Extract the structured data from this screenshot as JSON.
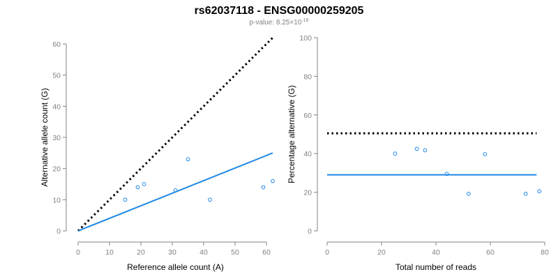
{
  "title": "rs62037118 - ENSG00000259205",
  "subtitle": {
    "prefix": "p-value: 8.25×10",
    "exponent": "-18"
  },
  "colors": {
    "points": "#1e88e5",
    "fit_line": "#1e88e5",
    "reference_line": "#000000",
    "ticks": "#808080"
  },
  "chart_data": [
    {
      "type": "scatter",
      "xlabel": "Reference allele count (A)",
      "ylabel": "Alternative allele count (G)",
      "xlim": [
        0,
        62
      ],
      "ylim": [
        0,
        60
      ],
      "xticks": [
        0,
        10,
        20,
        30,
        40,
        50,
        60
      ],
      "yticks": [
        0,
        10,
        20,
        30,
        40,
        50,
        60
      ],
      "points": [
        {
          "x": 15,
          "y": 10
        },
        {
          "x": 19,
          "y": 14
        },
        {
          "x": 21,
          "y": 15
        },
        {
          "x": 31,
          "y": 13
        },
        {
          "x": 35,
          "y": 23
        },
        {
          "x": 42,
          "y": 10
        },
        {
          "x": 59,
          "y": 14
        },
        {
          "x": 62,
          "y": 16
        }
      ],
      "lines": [
        {
          "style": "dotted",
          "color": "#000000",
          "from": [
            0,
            0
          ],
          "to": [
            62,
            62
          ]
        },
        {
          "style": "solid",
          "color": "#1e88e5",
          "from": [
            0,
            0
          ],
          "to": [
            62,
            25
          ]
        }
      ]
    },
    {
      "type": "scatter",
      "xlabel": "Total number of reads",
      "ylabel": "Percentage alternative (G)",
      "xlim": [
        0,
        80
      ],
      "ylim": [
        0,
        100
      ],
      "xticks": [
        0,
        20,
        40,
        60,
        80
      ],
      "yticks": [
        0,
        20,
        40,
        60,
        80,
        100
      ],
      "points": [
        {
          "x": 25,
          "y": 40
        },
        {
          "x": 33,
          "y": 42.5
        },
        {
          "x": 36,
          "y": 41.7
        },
        {
          "x": 44,
          "y": 29.5
        },
        {
          "x": 52,
          "y": 19.2
        },
        {
          "x": 58,
          "y": 39.7
        },
        {
          "x": 73,
          "y": 19.2
        },
        {
          "x": 78,
          "y": 20.5
        }
      ],
      "lines": [
        {
          "style": "dotted",
          "color": "#000000",
          "from": [
            0,
            50.5
          ],
          "to": [
            77,
            50.5
          ]
        },
        {
          "style": "solid",
          "color": "#1e88e5",
          "from": [
            0,
            29
          ],
          "to": [
            77,
            29
          ]
        }
      ]
    }
  ]
}
